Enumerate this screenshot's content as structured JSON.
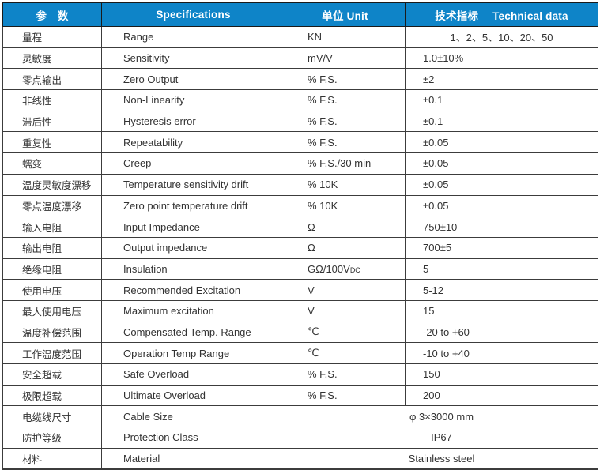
{
  "colors": {
    "header_bg": "#0e84c8",
    "border": "#3c3c3c",
    "text": "#333333"
  },
  "header": {
    "param": "参　数",
    "spec": "Specifications",
    "unit": "单位 Unit",
    "tech_zh": "技术指标",
    "tech_en": "Technical data"
  },
  "rows": [
    {
      "zh": "量程",
      "en": "Range",
      "unit": "KN",
      "value": "1、2、5、10、20、50",
      "align": "center",
      "merged": false
    },
    {
      "zh": "灵敏度",
      "en": "Sensitivity",
      "unit": "mV/V",
      "value": "1.0±10%",
      "align": "left",
      "merged": false
    },
    {
      "zh": "零点输出",
      "en": "Zero Output",
      "unit": "% F.S.",
      "value": "±2",
      "align": "left",
      "merged": false
    },
    {
      "zh": "非线性",
      "en": "Non-Linearity",
      "unit": "% F.S.",
      "value": "±0.1",
      "align": "left",
      "merged": false
    },
    {
      "zh": "滞后性",
      "en": "Hysteresis error",
      "unit": "% F.S.",
      "value": "±0.1",
      "align": "left",
      "merged": false
    },
    {
      "zh": "重复性",
      "en": "Repeatability",
      "unit": "% F.S.",
      "value": "±0.05",
      "align": "left",
      "merged": false
    },
    {
      "zh": "蠕变",
      "en": "Creep",
      "unit": "% F.S./30 min",
      "value": "±0.05",
      "align": "left",
      "merged": false
    },
    {
      "zh": "温度灵敏度漂移",
      "en": "Temperature sensitivity drift",
      "unit": "% 10K",
      "value": "±0.05",
      "align": "left",
      "merged": false
    },
    {
      "zh": "零点温度漂移",
      "en": "Zero point temperature drift",
      "unit": "% 10K",
      "value": "±0.05",
      "align": "left",
      "merged": false
    },
    {
      "zh": "输入电阻",
      "en": "Input Impedance",
      "unit": "Ω",
      "value": "750±10",
      "align": "left",
      "merged": false
    },
    {
      "zh": "输出电阻",
      "en": "Output impedance",
      "unit": "Ω",
      "value": "700±5",
      "align": "left",
      "merged": false
    },
    {
      "zh": "绝缘电阻",
      "en": "Insulation",
      "unit": "GΩ/100V",
      "unit_sub": "DC",
      "value": "5",
      "align": "left",
      "merged": false
    },
    {
      "zh": "使用电压",
      "en": "Recommended Excitation",
      "unit": "V",
      "value": "5-12",
      "align": "left",
      "merged": false
    },
    {
      "zh": "最大使用电压",
      "en": "Maximum excitation",
      "unit": "V",
      "value": "15",
      "align": "left",
      "merged": false
    },
    {
      "zh": "温度补偿范围",
      "en": "Compensated Temp. Range",
      "unit": "℃",
      "value": "-20 to +60",
      "align": "left",
      "merged": false
    },
    {
      "zh": "工作温度范围",
      "en": "Operation Temp Range",
      "unit": "℃",
      "value": "-10 to +40",
      "align": "left",
      "merged": false
    },
    {
      "zh": "安全超载",
      "en": "Safe Overload",
      "unit": "% F.S.",
      "value": "150",
      "align": "left",
      "merged": false
    },
    {
      "zh": "极限超载",
      "en": "Ultimate Overload",
      "unit": "% F.S.",
      "value": "200",
      "align": "left",
      "merged": false
    },
    {
      "zh": "电缆线尺寸",
      "en": "Cable Size",
      "unit": "",
      "value": "φ 3×3000 mm",
      "align": "center",
      "merged": true
    },
    {
      "zh": "防护等级",
      "en": "Protection Class",
      "unit": "",
      "value": "IP67",
      "align": "center",
      "merged": true
    },
    {
      "zh": "材料",
      "en": "Material",
      "unit": "",
      "value": "Stainless steel",
      "align": "center",
      "merged": true
    }
  ]
}
